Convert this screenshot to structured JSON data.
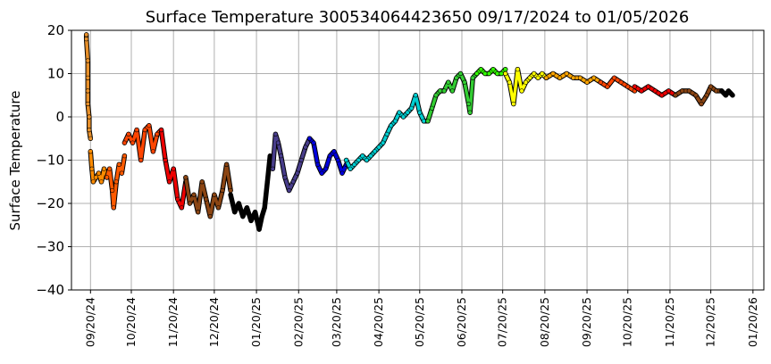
{
  "chart_data": {
    "type": "scatter",
    "title": "Surface Temperature 300534064423650  09/17/2024 to 01/05/2026",
    "xlabel": "",
    "ylabel": "Surface Temperature",
    "ylim": [
      -40,
      20
    ],
    "yticks": [
      20,
      10,
      0,
      -10,
      -20,
      -30,
      -40
    ],
    "ytick_labels": [
      "20",
      "10",
      "0",
      "−10",
      "−20",
      "−30",
      "−40"
    ],
    "xlim": [
      "2024-09-06",
      "2026-01-28"
    ],
    "xticks": [
      "2024-09-20",
      "2024-10-20",
      "2024-11-20",
      "2024-12-20",
      "2025-01-20",
      "2025-02-20",
      "2025-03-20",
      "2025-04-20",
      "2025-05-20",
      "2025-06-20",
      "2025-07-20",
      "2025-08-20",
      "2025-09-20",
      "2025-10-20",
      "2025-11-20",
      "2025-12-20",
      "2026-01-20"
    ],
    "xtick_labels": [
      "09/20/24",
      "10/20/24",
      "11/20/24",
      "12/20/24",
      "01/20/25",
      "02/20/25",
      "03/20/25",
      "04/20/25",
      "05/20/25",
      "06/20/25",
      "07/20/25",
      "08/20/25",
      "09/20/25",
      "10/20/25",
      "11/20/25",
      "12/20/25",
      "01/20/26"
    ],
    "grid": true,
    "marker_edge_color": "#000000",
    "series": [
      {
        "color": "#e8902a",
        "points": [
          [
            "2024-09-17",
            19
          ],
          [
            "2024-09-17",
            18
          ],
          [
            "2024-09-18",
            13
          ],
          [
            "2024-09-18",
            9
          ],
          [
            "2024-09-18",
            6
          ],
          [
            "2024-09-18",
            3
          ],
          [
            "2024-09-19",
            0
          ],
          [
            "2024-09-19",
            -3
          ],
          [
            "2024-09-20",
            -5
          ]
        ]
      },
      {
        "color": "#ff8c00",
        "points": [
          [
            "2024-09-20",
            -8
          ],
          [
            "2024-09-21",
            -12
          ],
          [
            "2024-09-22",
            -15
          ],
          [
            "2024-09-24",
            -14
          ],
          [
            "2024-09-26",
            -13
          ],
          [
            "2024-09-28",
            -15
          ],
          [
            "2024-09-30",
            -12
          ],
          [
            "2024-10-02",
            -14
          ]
        ]
      },
      {
        "color": "#ff5a00",
        "points": [
          [
            "2024-10-02",
            -14
          ],
          [
            "2024-10-04",
            -12
          ],
          [
            "2024-10-06",
            -17
          ],
          [
            "2024-10-07",
            -21
          ],
          [
            "2024-10-09",
            -15
          ],
          [
            "2024-10-11",
            -11
          ],
          [
            "2024-10-13",
            -13
          ],
          [
            "2024-10-15",
            -9
          ]
        ]
      },
      {
        "color": "#ff4500",
        "points": [
          [
            "2024-10-15",
            -6
          ],
          [
            "2024-10-18",
            -4
          ],
          [
            "2024-10-21",
            -6
          ],
          [
            "2024-10-24",
            -3
          ],
          [
            "2024-10-27",
            -10
          ],
          [
            "2024-10-30",
            -3
          ],
          [
            "2024-11-02",
            -2
          ],
          [
            "2024-11-05",
            -8
          ],
          [
            "2024-11-08",
            -4
          ],
          [
            "2024-11-11",
            -3
          ]
        ]
      },
      {
        "color": "#ee0000",
        "points": [
          [
            "2024-11-11",
            -3
          ],
          [
            "2024-11-14",
            -10
          ],
          [
            "2024-11-17",
            -15
          ],
          [
            "2024-11-20",
            -12
          ],
          [
            "2024-11-23",
            -19
          ],
          [
            "2024-11-26",
            -21
          ],
          [
            "2024-11-29",
            -15
          ]
        ]
      },
      {
        "color": "#8b4513",
        "points": [
          [
            "2024-11-29",
            -14
          ],
          [
            "2024-12-02",
            -20
          ],
          [
            "2024-12-05",
            -18
          ],
          [
            "2024-12-08",
            -22
          ],
          [
            "2024-12-11",
            -15
          ],
          [
            "2024-12-14",
            -19
          ],
          [
            "2024-12-17",
            -23
          ],
          [
            "2024-12-20",
            -18
          ],
          [
            "2024-12-23",
            -21
          ],
          [
            "2024-12-26",
            -17
          ],
          [
            "2024-12-29",
            -11
          ],
          [
            "2025-01-01",
            -17
          ]
        ]
      },
      {
        "color": "#000000",
        "points": [
          [
            "2025-01-01",
            -18
          ],
          [
            "2025-01-04",
            -22
          ],
          [
            "2025-01-07",
            -20
          ],
          [
            "2025-01-10",
            -23
          ],
          [
            "2025-01-13",
            -21
          ],
          [
            "2025-01-16",
            -24
          ],
          [
            "2025-01-19",
            -22
          ],
          [
            "2025-01-22",
            -26
          ],
          [
            "2025-01-24",
            -23
          ],
          [
            "2025-01-26",
            -21
          ],
          [
            "2025-01-28",
            -15
          ],
          [
            "2025-01-30",
            -9
          ],
          [
            "2025-02-01",
            -11
          ]
        ]
      },
      {
        "color": "#483d8b",
        "points": [
          [
            "2025-02-01",
            -12
          ],
          [
            "2025-02-03",
            -4
          ],
          [
            "2025-02-05",
            -6
          ],
          [
            "2025-02-07",
            -9
          ],
          [
            "2025-02-10",
            -14
          ],
          [
            "2025-02-13",
            -17
          ],
          [
            "2025-02-16",
            -15
          ],
          [
            "2025-02-19",
            -13
          ],
          [
            "2025-02-22",
            -10
          ],
          [
            "2025-02-25",
            -7
          ],
          [
            "2025-02-28",
            -5
          ]
        ]
      },
      {
        "color": "#0000dd",
        "points": [
          [
            "2025-02-28",
            -5
          ],
          [
            "2025-03-03",
            -6
          ],
          [
            "2025-03-06",
            -11
          ],
          [
            "2025-03-09",
            -13
          ],
          [
            "2025-03-12",
            -12
          ],
          [
            "2025-03-15",
            -9
          ],
          [
            "2025-03-18",
            -8
          ],
          [
            "2025-03-21",
            -10
          ],
          [
            "2025-03-24",
            -13
          ],
          [
            "2025-03-27",
            -11
          ]
        ]
      },
      {
        "color": "#00ced1",
        "points": [
          [
            "2025-03-27",
            -10
          ],
          [
            "2025-03-30",
            -12
          ],
          [
            "2025-04-02",
            -11
          ],
          [
            "2025-04-05",
            -10
          ],
          [
            "2025-04-08",
            -9
          ],
          [
            "2025-04-11",
            -10
          ],
          [
            "2025-04-14",
            -9
          ],
          [
            "2025-04-17",
            -8
          ],
          [
            "2025-04-20",
            -7
          ],
          [
            "2025-04-23",
            -6
          ],
          [
            "2025-04-26",
            -4
          ],
          [
            "2025-04-29",
            -2
          ],
          [
            "2025-05-02",
            -1
          ],
          [
            "2025-05-05",
            1
          ],
          [
            "2025-05-08",
            0
          ],
          [
            "2025-05-11",
            1
          ],
          [
            "2025-05-14",
            2
          ],
          [
            "2025-05-17",
            5
          ],
          [
            "2025-05-20",
            1
          ],
          [
            "2025-05-23",
            -1
          ],
          [
            "2025-05-26",
            -1
          ]
        ]
      },
      {
        "color": "#32cd32",
        "points": [
          [
            "2025-05-26",
            -1
          ],
          [
            "2025-05-29",
            2
          ],
          [
            "2025-06-01",
            5
          ],
          [
            "2025-06-04",
            6
          ],
          [
            "2025-06-07",
            6
          ],
          [
            "2025-06-10",
            8
          ],
          [
            "2025-06-13",
            6
          ],
          [
            "2025-06-16",
            9
          ],
          [
            "2025-06-19",
            10
          ],
          [
            "2025-06-22",
            8
          ],
          [
            "2025-06-25",
            3
          ],
          [
            "2025-06-26",
            1
          ],
          [
            "2025-06-28",
            9
          ],
          [
            "2025-07-01",
            10
          ]
        ]
      },
      {
        "color": "#32ff00",
        "points": [
          [
            "2025-07-01",
            10
          ],
          [
            "2025-07-04",
            11
          ],
          [
            "2025-07-07",
            10
          ],
          [
            "2025-07-10",
            10
          ],
          [
            "2025-07-13",
            11
          ],
          [
            "2025-07-16",
            10
          ],
          [
            "2025-07-19",
            10
          ],
          [
            "2025-07-22",
            11
          ]
        ]
      },
      {
        "color": "#ffff00",
        "points": [
          [
            "2025-07-22",
            10
          ],
          [
            "2025-07-25",
            8
          ],
          [
            "2025-07-28",
            3
          ],
          [
            "2025-07-31",
            11
          ],
          [
            "2025-08-03",
            6
          ],
          [
            "2025-08-06",
            8
          ],
          [
            "2025-08-09",
            9
          ],
          [
            "2025-08-12",
            10
          ],
          [
            "2025-08-15",
            9
          ],
          [
            "2025-08-18",
            10
          ],
          [
            "2025-08-21",
            9
          ]
        ]
      },
      {
        "color": "#ffa500",
        "points": [
          [
            "2025-08-21",
            9
          ],
          [
            "2025-08-26",
            10
          ],
          [
            "2025-08-31",
            9
          ],
          [
            "2025-09-05",
            10
          ],
          [
            "2025-09-10",
            9
          ],
          [
            "2025-09-15",
            9
          ],
          [
            "2025-09-20",
            8
          ],
          [
            "2025-09-25",
            9
          ],
          [
            "2025-09-30",
            8
          ]
        ]
      },
      {
        "color": "#ff4500",
        "points": [
          [
            "2025-09-30",
            8
          ],
          [
            "2025-10-05",
            7
          ],
          [
            "2025-10-10",
            9
          ],
          [
            "2025-10-15",
            8
          ],
          [
            "2025-10-20",
            7
          ],
          [
            "2025-10-25",
            6
          ]
        ]
      },
      {
        "color": "#ee0000",
        "points": [
          [
            "2025-10-25",
            7
          ],
          [
            "2025-10-30",
            6
          ],
          [
            "2025-11-04",
            7
          ],
          [
            "2025-11-09",
            6
          ],
          [
            "2025-11-14",
            5
          ],
          [
            "2025-11-19",
            6
          ],
          [
            "2025-11-24",
            5
          ]
        ]
      },
      {
        "color": "#8b4513",
        "points": [
          [
            "2025-11-24",
            5
          ],
          [
            "2025-11-29",
            6
          ],
          [
            "2025-12-04",
            6
          ],
          [
            "2025-12-09",
            5
          ],
          [
            "2025-12-13",
            3
          ],
          [
            "2025-12-17",
            5
          ],
          [
            "2025-12-20",
            7
          ],
          [
            "2025-12-24",
            6
          ],
          [
            "2025-12-28",
            6
          ]
        ]
      },
      {
        "color": "#000000",
        "points": [
          [
            "2025-12-28",
            6
          ],
          [
            "2025-12-31",
            5
          ],
          [
            "2026-01-02",
            6
          ],
          [
            "2026-01-05",
            5
          ]
        ]
      }
    ]
  }
}
